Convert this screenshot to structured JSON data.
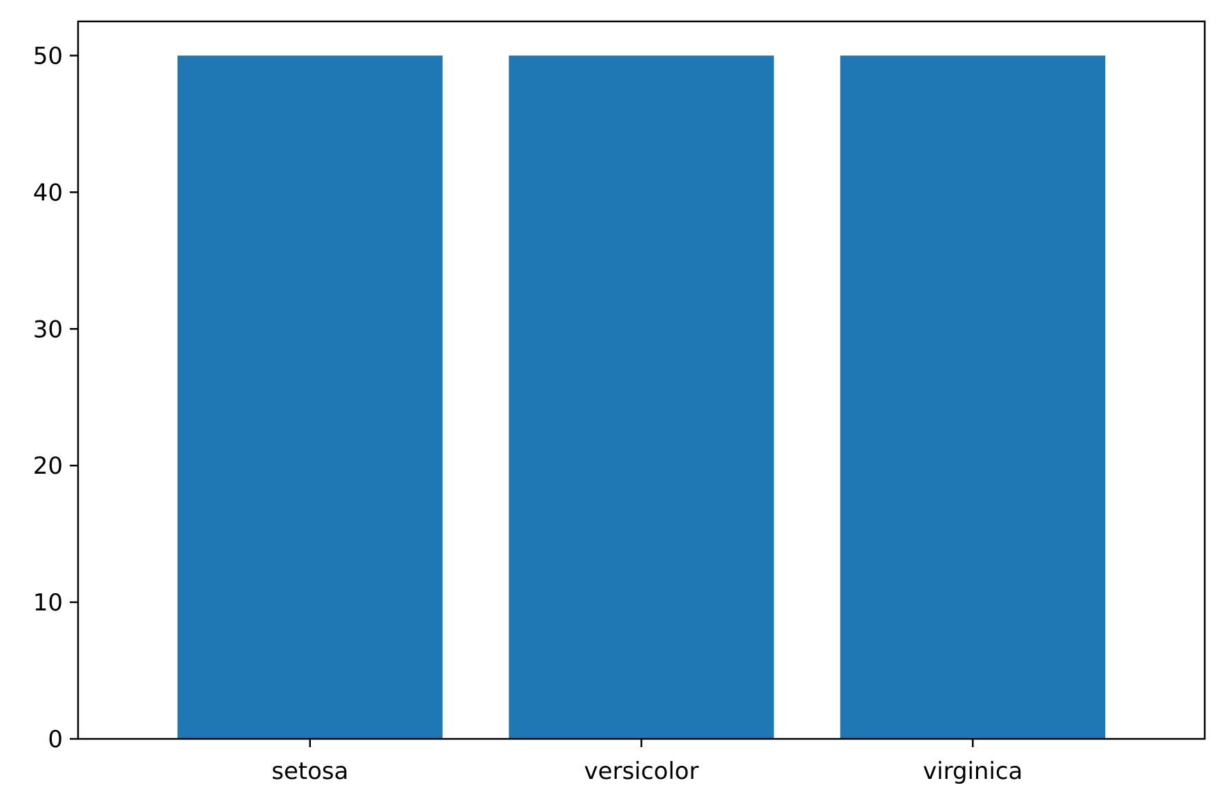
{
  "chart_data": {
    "type": "bar",
    "categories": [
      "setosa",
      "versicolor",
      "virginica"
    ],
    "values": [
      50,
      50,
      50
    ],
    "title": "",
    "xlabel": "",
    "ylabel": "",
    "ylim": [
      0,
      52.5
    ],
    "yticks": [
      0,
      10,
      20,
      30,
      40,
      50
    ],
    "grid": false,
    "legend": "none",
    "bar_color": "#1f77b4",
    "axis_color": "#000000"
  }
}
